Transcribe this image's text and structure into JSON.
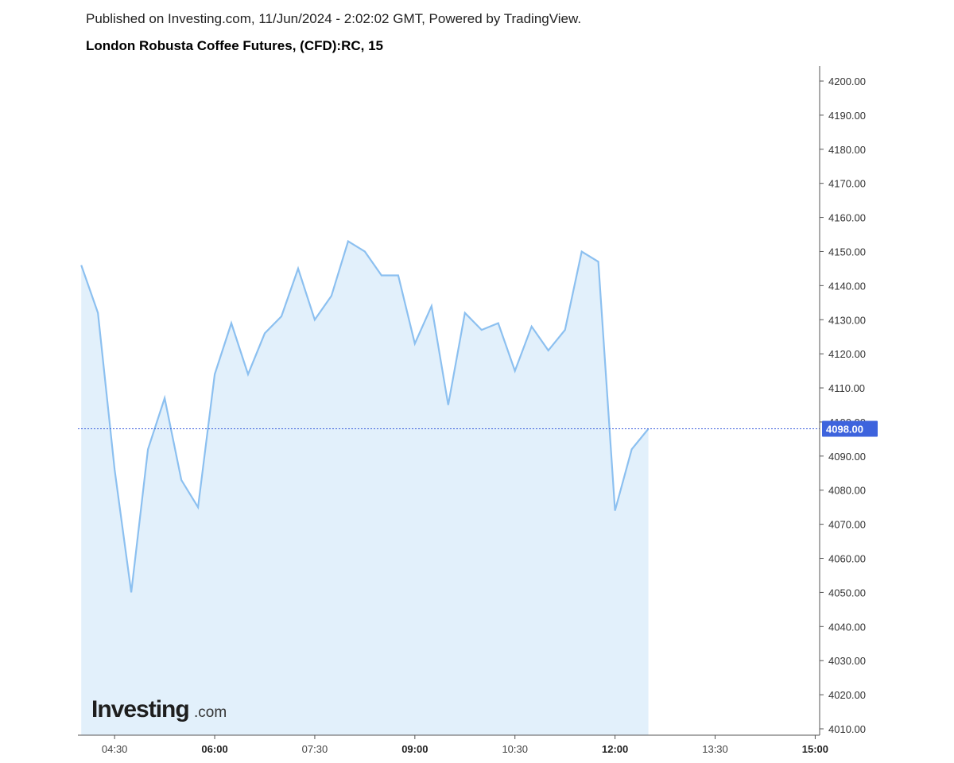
{
  "header": {
    "published": "Published on Investing.com, 11/Jun/2024 - 2:02:02 GMT, Powered by TradingView.",
    "instrument": "London Robusta Coffee Futures, (CFD):RC, 15"
  },
  "logo": {
    "main": "Investing",
    "suffix": ".com"
  },
  "colors": {
    "line": "#8cc0f0",
    "area": "#e2f0fb",
    "price_line": "#3b5fdc",
    "badge": "#3d63dd",
    "axis": "#555555"
  },
  "chart_data": {
    "type": "area",
    "title": "London Robusta Coffee Futures, (CFD):RC, 15",
    "xlabel": "",
    "ylabel": "",
    "x_ticks": [
      {
        "label": "04:30",
        "time": "04:30",
        "major": false
      },
      {
        "label": "06:00",
        "time": "06:00",
        "major": true
      },
      {
        "label": "07:30",
        "time": "07:30",
        "major": false
      },
      {
        "label": "09:00",
        "time": "09:00",
        "major": true
      },
      {
        "label": "10:30",
        "time": "10:30",
        "major": false
      },
      {
        "label": "12:00",
        "time": "12:00",
        "major": true
      },
      {
        "label": "13:30",
        "time": "13:30",
        "major": false
      },
      {
        "label": "15:00",
        "time": "15:00",
        "major": true
      }
    ],
    "x_range": [
      "03:57",
      "15:04"
    ],
    "y_ticks": [
      "4010.00",
      "4020.00",
      "4030.00",
      "4040.00",
      "4050.00",
      "4060.00",
      "4070.00",
      "4080.00",
      "4090.00",
      "4100.00",
      "4110.00",
      "4120.00",
      "4130.00",
      "4140.00",
      "4150.00",
      "4160.00",
      "4170.00",
      "4180.00",
      "4190.00",
      "4200.00"
    ],
    "ylim": [
      4008,
      4204
    ],
    "last_price": 4098,
    "last_price_label": "4098.00",
    "grid": false,
    "series": [
      {
        "points": [
          {
            "t": "04:00",
            "v": 4146
          },
          {
            "t": "04:15",
            "v": 4132
          },
          {
            "t": "04:30",
            "v": 4086
          },
          {
            "t": "04:45",
            "v": 4050
          },
          {
            "t": "05:00",
            "v": 4092
          },
          {
            "t": "05:15",
            "v": 4107
          },
          {
            "t": "05:30",
            "v": 4083
          },
          {
            "t": "05:45",
            "v": 4075
          },
          {
            "t": "06:00",
            "v": 4114
          },
          {
            "t": "06:15",
            "v": 4129
          },
          {
            "t": "06:30",
            "v": 4114
          },
          {
            "t": "06:45",
            "v": 4126
          },
          {
            "t": "07:00",
            "v": 4131
          },
          {
            "t": "07:15",
            "v": 4145
          },
          {
            "t": "07:30",
            "v": 4130
          },
          {
            "t": "07:45",
            "v": 4137
          },
          {
            "t": "08:00",
            "v": 4153
          },
          {
            "t": "08:15",
            "v": 4150
          },
          {
            "t": "08:30",
            "v": 4143
          },
          {
            "t": "08:45",
            "v": 4143
          },
          {
            "t": "09:00",
            "v": 4123
          },
          {
            "t": "09:15",
            "v": 4134
          },
          {
            "t": "09:30",
            "v": 4105
          },
          {
            "t": "09:45",
            "v": 4132
          },
          {
            "t": "10:00",
            "v": 4127
          },
          {
            "t": "10:15",
            "v": 4129
          },
          {
            "t": "10:30",
            "v": 4115
          },
          {
            "t": "10:45",
            "v": 4128
          },
          {
            "t": "11:00",
            "v": 4121
          },
          {
            "t": "11:15",
            "v": 4127
          },
          {
            "t": "11:30",
            "v": 4150
          },
          {
            "t": "11:45",
            "v": 4147
          },
          {
            "t": "12:00",
            "v": 4074
          },
          {
            "t": "12:15",
            "v": 4092
          },
          {
            "t": "12:30",
            "v": 4098
          }
        ]
      }
    ]
  }
}
